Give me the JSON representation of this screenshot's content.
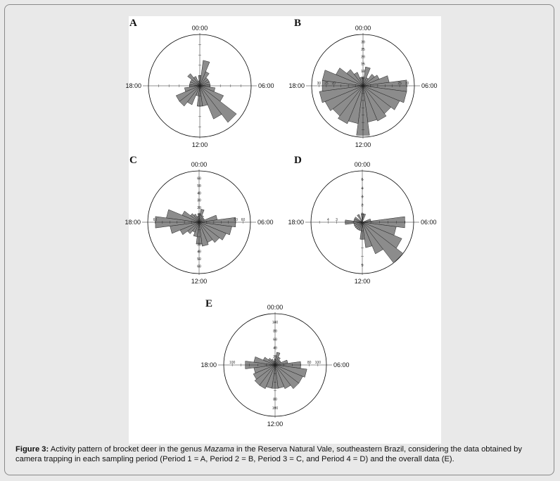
{
  "caption": {
    "label": "Figure 3:",
    "text_before_genus": " Activity pattern of brocket deer in the genus ",
    "genus": "Mazama",
    "text_after_genus": " in the Reserva Natural Vale, southeastern Brazil, considering the data obtained by camera trapping in each sampling period (Period 1 = A, Period 2 = B, Period 3 = C, and Period 4 = D) and the overall data (E)."
  },
  "colors": {
    "bar_fill": "#8c8c8c",
    "bar_stroke": "#222222",
    "circle": "#000000",
    "figure_bg": "#ffffff",
    "page_bg": "#e9e9e9"
  },
  "chart_data": [
    {
      "panel": "A",
      "type": "polar-bar",
      "time_labels": [
        "00:00",
        "06:00",
        "12:00",
        "18:00"
      ],
      "rmax": 10,
      "ticks": [
        2,
        4,
        6,
        8
      ],
      "hours": [
        0,
        1,
        2,
        3,
        4,
        5,
        6,
        7,
        8,
        9,
        10,
        11,
        12,
        13,
        14,
        15,
        16,
        17,
        18,
        19,
        20,
        21,
        22,
        23
      ],
      "values": [
        2,
        5,
        3,
        2,
        2,
        2,
        2,
        3,
        5,
        9,
        7,
        4,
        4,
        2,
        4,
        5,
        5,
        3,
        2,
        2,
        2,
        3,
        2,
        1
      ]
    },
    {
      "panel": "B",
      "type": "polar-bar",
      "time_labels": [
        "00:00",
        "06:00",
        "12:00",
        "18:00"
      ],
      "rmax": 35,
      "ticks": [
        5,
        10,
        15,
        20,
        25,
        30
      ],
      "tick_labels_top": [
        "5",
        "10",
        "15",
        "20",
        "25",
        "30"
      ],
      "tick_labels_left": [
        "30",
        "25",
        "20"
      ],
      "tick_labels_right": [
        "25",
        "30"
      ],
      "hours": [
        0,
        1,
        2,
        3,
        4,
        5,
        6,
        7,
        8,
        9,
        10,
        11,
        12,
        13,
        14,
        15,
        16,
        17,
        18,
        19,
        20,
        21,
        22,
        23
      ],
      "values": [
        6,
        13,
        6,
        10,
        12,
        18,
        30,
        30,
        27,
        24,
        26,
        25,
        34,
        26,
        28,
        26,
        28,
        30,
        28,
        28,
        20,
        14,
        10,
        6
      ]
    },
    {
      "panel": "C",
      "type": "polar-bar",
      "time_labels": [
        "00:00",
        "06:00",
        "12:00",
        "18:00"
      ],
      "rmax": 70,
      "ticks": [
        10,
        20,
        30,
        40,
        50,
        60
      ],
      "tick_labels_top": [
        "10",
        "20",
        "30",
        "40",
        "50",
        "60"
      ],
      "tick_labels_left": [
        "60"
      ],
      "tick_labels_right": [
        "50",
        "60"
      ],
      "tick_labels_bottom": [
        "30",
        "40",
        "50",
        "60"
      ],
      "hours": [
        0,
        1,
        2,
        3,
        4,
        5,
        6,
        7,
        8,
        9,
        10,
        11,
        12,
        13,
        14,
        15,
        16,
        17,
        18,
        19,
        20,
        21,
        22,
        23
      ],
      "values": [
        12,
        18,
        10,
        8,
        8,
        25,
        50,
        45,
        40,
        35,
        30,
        33,
        30,
        20,
        15,
        20,
        28,
        40,
        60,
        45,
        25,
        15,
        12,
        8
      ]
    },
    {
      "panel": "D",
      "type": "polar-bar",
      "time_labels": [
        "00:00",
        "06:00",
        "12:00",
        "18:00"
      ],
      "rmax": 6,
      "ticks": [
        1,
        2,
        3,
        4,
        5
      ],
      "tick_labels_top": [
        "1",
        "2",
        "3",
        "4",
        "5"
      ],
      "tick_labels_left": [
        "4",
        "3"
      ],
      "tick_labels_bottom": [
        "5"
      ],
      "hours": [
        0,
        1,
        2,
        3,
        4,
        5,
        6,
        7,
        8,
        9,
        10,
        11,
        12,
        13,
        14,
        15,
        16,
        17,
        18,
        19,
        20,
        21,
        22,
        23
      ],
      "values": [
        1,
        1,
        0,
        0,
        0,
        1,
        5,
        4,
        5,
        6,
        4,
        3,
        2,
        1,
        1,
        1,
        1,
        1,
        2,
        1,
        1,
        0,
        1,
        0
      ]
    },
    {
      "panel": "E",
      "type": "polar-bar",
      "time_labels": [
        "00:00",
        "06:00",
        "12:00",
        "18:00"
      ],
      "rmax": 120,
      "ticks": [
        20,
        40,
        60,
        80,
        100
      ],
      "tick_labels_top": [
        "20",
        "40",
        "60",
        "80",
        "100"
      ],
      "tick_labels_left": [
        "100"
      ],
      "tick_labels_right": [
        "80",
        "100"
      ],
      "tick_labels_bottom": [
        "80",
        "100"
      ],
      "hours": [
        0,
        1,
        2,
        3,
        4,
        5,
        6,
        7,
        8,
        9,
        10,
        11,
        12,
        13,
        14,
        15,
        16,
        17,
        18,
        19,
        20,
        21,
        22,
        23
      ],
      "values": [
        15,
        30,
        20,
        15,
        15,
        30,
        60,
        75,
        70,
        70,
        60,
        55,
        55,
        55,
        60,
        60,
        55,
        50,
        70,
        50,
        30,
        20,
        15,
        10
      ]
    }
  ]
}
